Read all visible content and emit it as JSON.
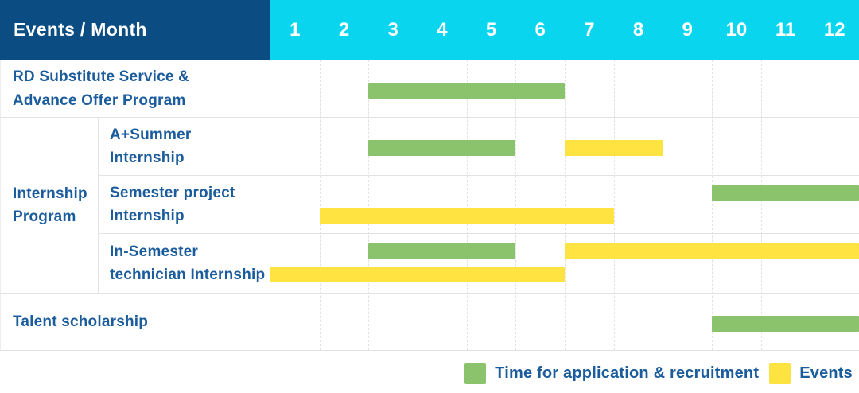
{
  "header": {
    "label": "Events / Month"
  },
  "colors": {
    "header_bg": "#0b4d83",
    "month_bg": "#0ad5ee",
    "recruitment": "#8ac36b",
    "event": "#ffe341",
    "label_text": "#1b5c9c",
    "grid": "#e3e3e3"
  },
  "chart_data": {
    "type": "gantt",
    "x_axis": {
      "label": "Month",
      "ticks": [
        "1",
        "2",
        "3",
        "4",
        "5",
        "6",
        "7",
        "8",
        "9",
        "10",
        "11",
        "12"
      ],
      "range": [
        1,
        12
      ]
    },
    "group_column": {
      "label": "Internship\nProgram",
      "spans_rows": [
        2,
        3,
        4
      ]
    },
    "rows": [
      {
        "label": "RD Substitute Service &\nAdvance Offer Program",
        "lines": 1,
        "bars": [
          {
            "type": "recruitment",
            "start": 3,
            "end": 6,
            "line": 1
          }
        ]
      },
      {
        "label": "A+Summer\nInternship",
        "lines": 1,
        "bars": [
          {
            "type": "recruitment",
            "start": 3,
            "end": 5,
            "line": 1
          },
          {
            "type": "event",
            "start": 7,
            "end": 8,
            "line": 1
          }
        ]
      },
      {
        "label": "Semester project\nInternship",
        "lines": 2,
        "bars": [
          {
            "type": "recruitment",
            "start": 10,
            "end": 12,
            "line": 1
          },
          {
            "type": "event",
            "start": 2,
            "end": 7,
            "line": 2
          }
        ]
      },
      {
        "label": "In-Semester\ntechnician Internship",
        "lines": 2,
        "bars": [
          {
            "type": "recruitment",
            "start": 3,
            "end": 5,
            "line": 1
          },
          {
            "type": "event",
            "start": 7,
            "end": 12,
            "line": 1
          },
          {
            "type": "event",
            "start": 1,
            "end": 6,
            "line": 2
          }
        ]
      },
      {
        "label": "Talent scholarship",
        "lines": 1,
        "bars": [
          {
            "type": "recruitment",
            "start": 10,
            "end": 12,
            "line": 1
          }
        ]
      }
    ],
    "legend": [
      {
        "key": "recruitment",
        "label": "Time for application & recruitment"
      },
      {
        "key": "event",
        "label": "Events"
      }
    ],
    "legend_position": "bottom-right"
  }
}
